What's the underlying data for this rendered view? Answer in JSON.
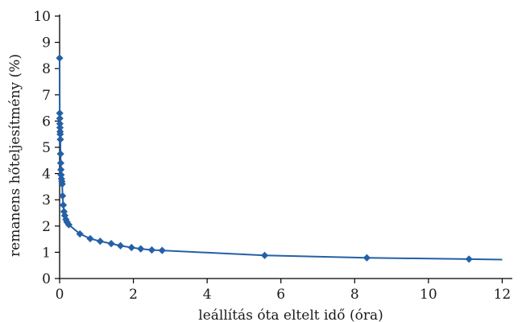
{
  "chart_data": {
    "type": "line",
    "title": "",
    "xlabel": "leállítás óta eltelt idő (óra)",
    "ylabel": "remanens hőteljesítmény (%)",
    "xlim": [
      0,
      12.1
    ],
    "ylim": [
      0,
      10
    ],
    "xticks": [
      "0",
      "2",
      "4",
      "6",
      "8",
      "10",
      "12"
    ],
    "yticks": [
      "0",
      "1",
      "2",
      "3",
      "4",
      "5",
      "6",
      "7",
      "8",
      "9",
      "10"
    ],
    "grid": false,
    "legend": "none",
    "series_color": "#2460a7",
    "series": [
      {
        "x": [
          0,
          0.003,
          0.005,
          0.007,
          0.01,
          0.013,
          0.016,
          0.02,
          0.025,
          0.03,
          0.035,
          0.04,
          0.05,
          0.06,
          0.07,
          0.08,
          0.1,
          0.12,
          0.14,
          0.17,
          0.2,
          0.25,
          0.55,
          0.83,
          1.1,
          1.4,
          1.65,
          1.95,
          2.2,
          2.5,
          2.78,
          5.56,
          8.33,
          11.1,
          12.0
        ],
        "y": [
          8.4,
          6.3,
          6.1,
          5.9,
          5.75,
          5.6,
          5.5,
          5.3,
          4.75,
          4.4,
          4.15,
          3.95,
          3.8,
          3.7,
          3.6,
          3.15,
          2.8,
          2.55,
          2.4,
          2.25,
          2.15,
          2.05,
          1.7,
          1.52,
          1.42,
          1.33,
          1.25,
          1.18,
          1.13,
          1.09,
          1.07,
          0.88,
          0.79,
          0.74,
          0.72
        ],
        "markers": [
          true,
          true,
          true,
          true,
          true,
          true,
          true,
          true,
          true,
          true,
          true,
          true,
          true,
          true,
          true,
          true,
          true,
          true,
          true,
          true,
          true,
          true,
          true,
          true,
          true,
          true,
          true,
          true,
          true,
          true,
          true,
          true,
          true,
          true,
          false
        ]
      }
    ]
  }
}
